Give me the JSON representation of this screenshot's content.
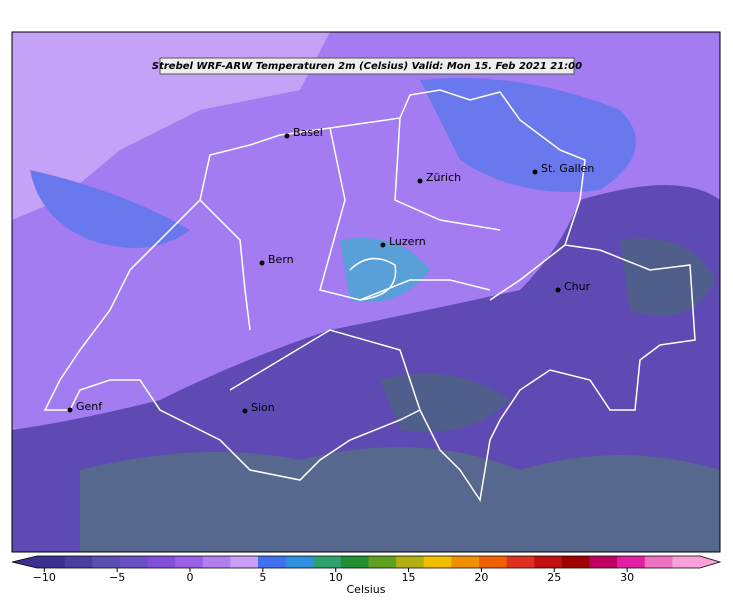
{
  "title": "Strebel WRF-ARW Temperaturen 2m (Celsius)   Valid: Mon 15. Feb 2021 21:00",
  "cities": [
    "Basel",
    "Zürich",
    "St. Gallen",
    "Luzern",
    "Bern",
    "Chur",
    "Genf",
    "Sion"
  ],
  "colorbar": {
    "label": "Celsius",
    "lim": [
      -10.5,
      35
    ],
    "ticks": [
      {
        "value": -10,
        "label": "−10"
      },
      {
        "value": -5,
        "label": "−5"
      },
      0,
      5,
      10,
      15,
      20,
      25,
      30
    ],
    "colors": [
      "#3b2f8f",
      "#4a3fa0",
      "#5a4fb0",
      "#6a50c0",
      "#8050d8",
      "#9a60e8",
      "#b080f0",
      "#c8a0f8",
      "#4070f0",
      "#3090e0",
      "#30a070",
      "#209030",
      "#60a020",
      "#b0b010",
      "#f0c000",
      "#f09000",
      "#f06000",
      "#e03020",
      "#c01010",
      "#a00000",
      "#c00060",
      "#e020a0",
      "#f070c0",
      "#f8a0d8"
    ]
  }
}
